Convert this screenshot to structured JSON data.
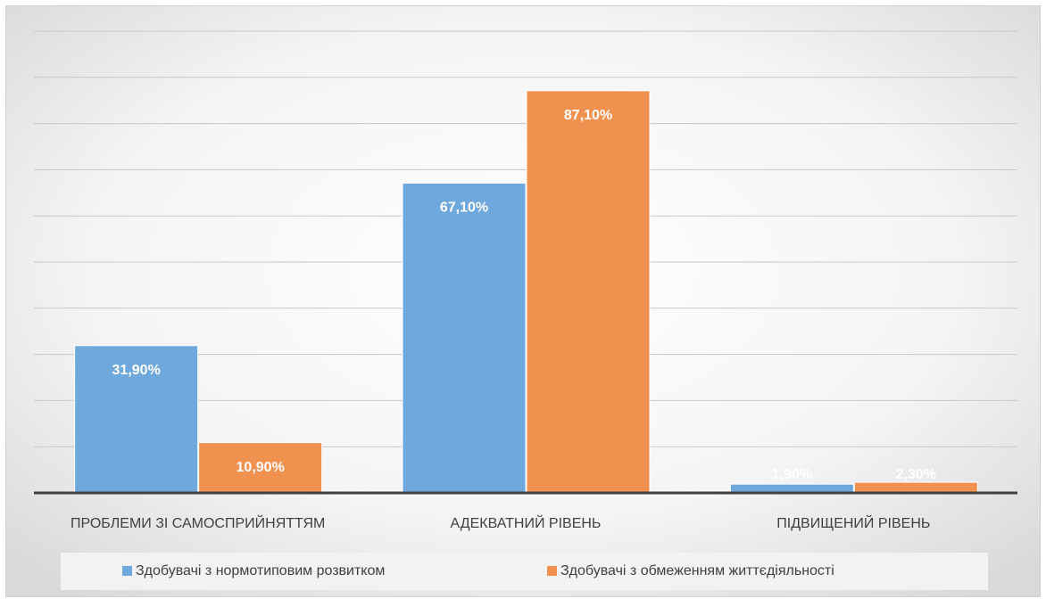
{
  "chart_data": {
    "type": "bar",
    "categories": [
      "ПРОБЛЕМИ ЗІ САМОСПРИЙНЯТТЯМ",
      "АДЕКВАТНИЙ РІВЕНЬ",
      "ПІДВИЩЕНИЙ РІВЕНЬ"
    ],
    "series": [
      {
        "name": "Здобувачі з нормотиповим розвитком",
        "color": "#6fa8dc",
        "values": [
          31.9,
          67.1,
          1.9
        ],
        "value_labels": [
          "31,90%",
          "67,10%",
          "1,90%"
        ]
      },
      {
        "name": "Здобувачі з обмеженням життєдіяльності",
        "color": "#f0914f",
        "values": [
          10.9,
          87.1,
          2.3
        ],
        "value_labels": [
          "10,90%",
          "87,10%",
          "2,30%"
        ]
      }
    ],
    "ylim": [
      0,
      100
    ],
    "yticks": [
      0,
      10,
      20,
      30,
      40,
      50,
      60,
      70,
      80,
      90,
      100
    ],
    "grid": true,
    "legend": "bottom"
  }
}
